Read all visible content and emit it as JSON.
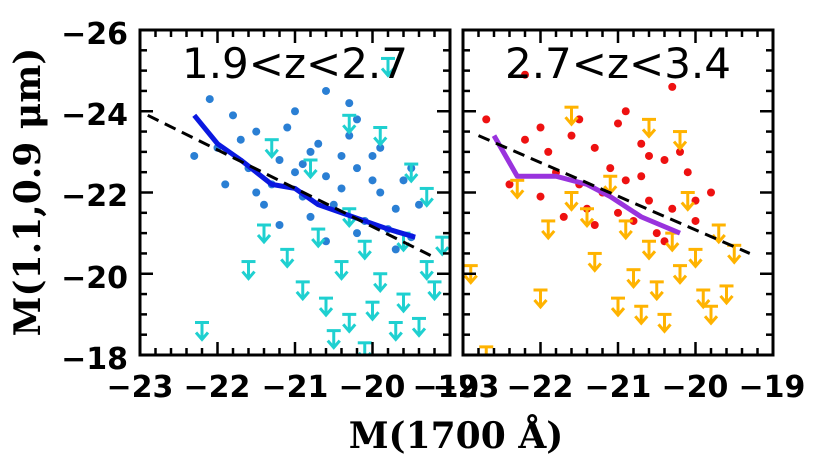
{
  "chart_data": [
    {
      "type": "scatter",
      "title": "1.9<z<2.7",
      "xlabel": "M(1700 Å)",
      "ylabel": "M(1.1,0.9 μm)",
      "xlim": [
        -23,
        -19
      ],
      "ylim": [
        -18,
        -26
      ],
      "x_ticks": [
        "−23",
        "−22",
        "−21",
        "−20",
        "−19"
      ],
      "y_ticks": [
        "−26",
        "−24",
        "−22",
        "−20",
        "−18"
      ],
      "colors": {
        "detections": "#2a7fd4",
        "upper_limits": "#1fd0d0",
        "median": "#0a18e0",
        "fit": "#000000"
      },
      "series": [
        {
          "kind": "detections",
          "marker": "circle",
          "points": [
            [
              -22.1,
              -24.3
            ],
            [
              -21.8,
              -23.9
            ],
            [
              -21.5,
              -23.5
            ],
            [
              -21.2,
              -22.8
            ],
            [
              -21.0,
              -22.5
            ],
            [
              -20.8,
              -23.0
            ],
            [
              -20.6,
              -22.4
            ],
            [
              -20.4,
              -22.1
            ],
            [
              -20.2,
              -22.6
            ],
            [
              -19.9,
              -22.0
            ],
            [
              -19.7,
              -21.6
            ],
            [
              -22.0,
              -23.1
            ],
            [
              -21.6,
              -22.6
            ],
            [
              -21.3,
              -22.2
            ],
            [
              -20.9,
              -21.9
            ],
            [
              -20.5,
              -21.7
            ],
            [
              -20.1,
              -21.3
            ],
            [
              -19.8,
              -21.1
            ],
            [
              -21.7,
              -23.3
            ],
            [
              -21.1,
              -23.6
            ],
            [
              -20.7,
              -23.2
            ],
            [
              -20.3,
              -23.4
            ],
            [
              -20.0,
              -22.9
            ],
            [
              -19.6,
              -22.3
            ],
            [
              -21.4,
              -21.7
            ],
            [
              -20.8,
              -21.4
            ],
            [
              -20.2,
              -21.0
            ],
            [
              -19.5,
              -20.9
            ],
            [
              -22.3,
              -22.9
            ],
            [
              -21.9,
              -22.2
            ],
            [
              -21.0,
              -24.0
            ],
            [
              -20.6,
              -24.5
            ],
            [
              -20.2,
              -23.8
            ],
            [
              -19.9,
              -23.1
            ],
            [
              -19.5,
              -22.6
            ],
            [
              -21.5,
              -22.0
            ],
            [
              -20.9,
              -22.7
            ],
            [
              -20.4,
              -22.9
            ],
            [
              -20.0,
              -22.3
            ],
            [
              -19.7,
              -20.6
            ],
            [
              -21.2,
              -21.2
            ],
            [
              -20.6,
              -20.8
            ],
            [
              -20.3,
              -24.2
            ],
            [
              -19.4,
              -21.7
            ]
          ]
        },
        {
          "kind": "upper_limits",
          "marker": "down-arrow",
          "points": [
            [
              -19.8,
              -25.3
            ],
            [
              -21.3,
              -23.3
            ],
            [
              -20.8,
              -22.8
            ],
            [
              -20.3,
              -23.9
            ],
            [
              -19.9,
              -23.6
            ],
            [
              -19.5,
              -22.7
            ],
            [
              -19.3,
              -22.1
            ],
            [
              -21.4,
              -21.2
            ],
            [
              -21.1,
              -20.6
            ],
            [
              -20.7,
              -21.1
            ],
            [
              -20.4,
              -20.3
            ],
            [
              -20.1,
              -20.8
            ],
            [
              -19.9,
              -20.0
            ],
            [
              -19.6,
              -19.5
            ],
            [
              -19.3,
              -20.3
            ],
            [
              -19.1,
              -20.9
            ],
            [
              -20.9,
              -19.8
            ],
            [
              -20.6,
              -19.4
            ],
            [
              -20.3,
              -19.0
            ],
            [
              -20.0,
              -19.3
            ],
            [
              -19.7,
              -18.8
            ],
            [
              -19.4,
              -18.9
            ],
            [
              -21.6,
              -20.3
            ],
            [
              -20.5,
              -18.6
            ],
            [
              -20.1,
              -18.3
            ],
            [
              -19.2,
              -19.8
            ],
            [
              -22.2,
              -18.8
            ],
            [
              -19.6,
              -21.0
            ],
            [
              -20.3,
              -21.6
            ]
          ]
        },
        {
          "kind": "median",
          "marker": "line",
          "name": "",
          "points": [
            [
              -22.3,
              -23.9
            ],
            [
              -22.0,
              -23.2
            ],
            [
              -21.7,
              -22.8
            ],
            [
              -21.3,
              -22.2
            ],
            [
              -21.0,
              -22.1
            ],
            [
              -20.7,
              -21.7
            ],
            [
              -20.4,
              -21.5
            ],
            [
              -20.1,
              -21.3
            ],
            [
              -19.8,
              -21.1
            ],
            [
              -19.45,
              -20.9
            ]
          ]
        },
        {
          "kind": "fit",
          "marker": "dashed-line",
          "points": [
            [
              -22.9,
              -23.9
            ],
            [
              -19.25,
              -20.45
            ]
          ]
        }
      ]
    },
    {
      "type": "scatter",
      "title": "2.7<z<3.4",
      "xlabel": "M(1700 Å)",
      "xlim": [
        -23,
        -19
      ],
      "ylim": [
        -18,
        -26
      ],
      "x_ticks": [
        "−23",
        "−22",
        "−21",
        "−20",
        "−19"
      ],
      "colors": {
        "detections": "#ee1111",
        "upper_limits": "#ffb300",
        "median": "#9933dd",
        "fit": "#000000"
      },
      "series": [
        {
          "kind": "detections",
          "marker": "circle",
          "points": [
            [
              -22.2,
              -24.9
            ],
            [
              -20.3,
              -24.6
            ],
            [
              -22.7,
              -23.8
            ],
            [
              -22.2,
              -23.3
            ],
            [
              -21.9,
              -23.0
            ],
            [
              -21.6,
              -23.4
            ],
            [
              -21.3,
              -23.1
            ],
            [
              -21.0,
              -23.7
            ],
            [
              -20.7,
              -23.2
            ],
            [
              -20.4,
              -22.8
            ],
            [
              -20.1,
              -22.5
            ],
            [
              -21.8,
              -22.5
            ],
            [
              -21.5,
              -22.2
            ],
            [
              -21.2,
              -22.0
            ],
            [
              -20.9,
              -22.3
            ],
            [
              -20.6,
              -21.8
            ],
            [
              -20.3,
              -21.6
            ],
            [
              -20.0,
              -21.3
            ],
            [
              -22.0,
              -21.9
            ],
            [
              -21.4,
              -21.6
            ],
            [
              -20.8,
              -21.3
            ],
            [
              -20.5,
              -21.0
            ],
            [
              -21.1,
              -22.6
            ],
            [
              -20.6,
              -22.9
            ],
            [
              -20.2,
              -23.0
            ],
            [
              -21.7,
              -21.4
            ],
            [
              -22.4,
              -22.2
            ],
            [
              -21.0,
              -21.5
            ],
            [
              -20.4,
              -20.8
            ],
            [
              -20.9,
              -24.0
            ],
            [
              -21.5,
              -23.8
            ],
            [
              -22.0,
              -23.6
            ],
            [
              -20.0,
              -21.8
            ],
            [
              -19.8,
              -22.0
            ],
            [
              -20.7,
              -22.4
            ],
            [
              -21.3,
              -21.2
            ]
          ]
        },
        {
          "kind": "upper_limits",
          "marker": "down-arrow",
          "points": [
            [
              -21.6,
              -24.1
            ],
            [
              -20.6,
              -23.8
            ],
            [
              -20.2,
              -23.5
            ],
            [
              -22.3,
              -22.3
            ],
            [
              -21.6,
              -22.0
            ],
            [
              -21.1,
              -22.4
            ],
            [
              -20.9,
              -21.3
            ],
            [
              -20.6,
              -20.8
            ],
            [
              -20.3,
              -21.0
            ],
            [
              -20.0,
              -20.6
            ],
            [
              -19.7,
              -21.2
            ],
            [
              -19.5,
              -20.7
            ],
            [
              -21.9,
              -21.3
            ],
            [
              -21.3,
              -20.5
            ],
            [
              -20.8,
              -20.1
            ],
            [
              -20.5,
              -19.8
            ],
            [
              -20.2,
              -20.2
            ],
            [
              -19.9,
              -19.6
            ],
            [
              -19.6,
              -19.7
            ],
            [
              -22.9,
              -20.2
            ],
            [
              -22.0,
              -19.6
            ],
            [
              -21.0,
              -19.4
            ],
            [
              -20.7,
              -19.2
            ],
            [
              -20.4,
              -19.0
            ],
            [
              -19.8,
              -19.2
            ],
            [
              -22.7,
              -18.2
            ],
            [
              -21.4,
              -21.6
            ],
            [
              -20.1,
              -22.0
            ]
          ]
        },
        {
          "kind": "median",
          "marker": "line",
          "name": "",
          "points": [
            [
              -22.6,
              -23.4
            ],
            [
              -22.3,
              -22.4
            ],
            [
              -21.8,
              -22.4
            ],
            [
              -21.4,
              -22.2
            ],
            [
              -21.1,
              -21.9
            ],
            [
              -20.7,
              -21.4
            ],
            [
              -20.2,
              -21.0
            ]
          ]
        },
        {
          "kind": "fit",
          "marker": "dashed-line",
          "points": [
            [
              -22.8,
              -23.4
            ],
            [
              -19.3,
              -20.5
            ]
          ]
        }
      ]
    }
  ]
}
